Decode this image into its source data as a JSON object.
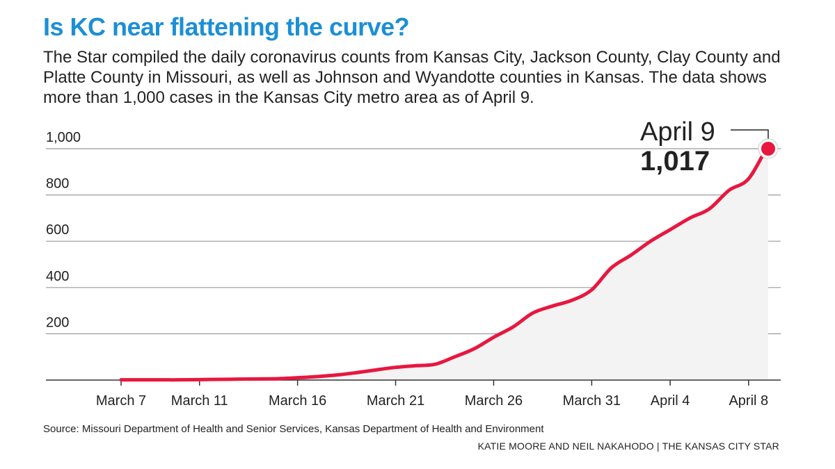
{
  "header": {
    "title": "Is KC near flattening the curve?",
    "subtitle": "The Star compiled the daily coronavirus counts from Kansas City, Jackson County, Clay County and Platte County in Missouri, as well as Johnson and Wyandotte counties in Kansas. The data shows more than 1,000 cases in the Kansas City metro area as of April 9."
  },
  "footer": {
    "source": "Source: Missouri Department of Health and Senior Services, Kansas Department of Health and Environment",
    "credit": "KATIE MOORE AND NEIL NAKAHODO | THE KANSAS CITY STAR"
  },
  "colors": {
    "title": "#1b8fd6",
    "line": "#e8173f",
    "area": "#f3f3f3",
    "grid": "#9a9a9a",
    "text": "#222222"
  },
  "chart_data": {
    "type": "area",
    "title": "",
    "xlabel": "",
    "ylabel": "",
    "ylim": [
      0,
      1000
    ],
    "yticks": [
      200,
      400,
      600,
      800,
      1000
    ],
    "ytick_labels": [
      "200",
      "400",
      "600",
      "800",
      "1,000"
    ],
    "xticks": [
      "2020-03-07",
      "2020-03-11",
      "2020-03-16",
      "2020-03-21",
      "2020-03-26",
      "2020-03-31",
      "2020-04-04",
      "2020-04-08"
    ],
    "xtick_labels": [
      "March 7",
      "March 11",
      "March 16",
      "March 21",
      "March 26",
      "March 31",
      "April 4",
      "April 8"
    ],
    "grid": true,
    "series": [
      {
        "name": "",
        "x": [
          "2020-03-07",
          "2020-03-08",
          "2020-03-09",
          "2020-03-10",
          "2020-03-11",
          "2020-03-12",
          "2020-03-13",
          "2020-03-14",
          "2020-03-15",
          "2020-03-16",
          "2020-03-17",
          "2020-03-18",
          "2020-03-19",
          "2020-03-20",
          "2020-03-21",
          "2020-03-22",
          "2020-03-23",
          "2020-03-24",
          "2020-03-25",
          "2020-03-26",
          "2020-03-27",
          "2020-03-28",
          "2020-03-29",
          "2020-03-30",
          "2020-03-31",
          "2020-04-01",
          "2020-04-02",
          "2020-04-03",
          "2020-04-04",
          "2020-04-05",
          "2020-04-06",
          "2020-04-07",
          "2020-04-08",
          "2020-04-09"
        ],
        "y": [
          1,
          1,
          1,
          1,
          2,
          3,
          4,
          5,
          6,
          10,
          15,
          22,
          32,
          44,
          55,
          62,
          68,
          100,
          135,
          185,
          230,
          290,
          320,
          345,
          390,
          485,
          540,
          600,
          650,
          700,
          740,
          820,
          870,
          1017
        ]
      }
    ],
    "annotation": {
      "date_label": "April 9",
      "value_label": "1,017",
      "x": "2020-04-09",
      "y": 1017
    }
  }
}
